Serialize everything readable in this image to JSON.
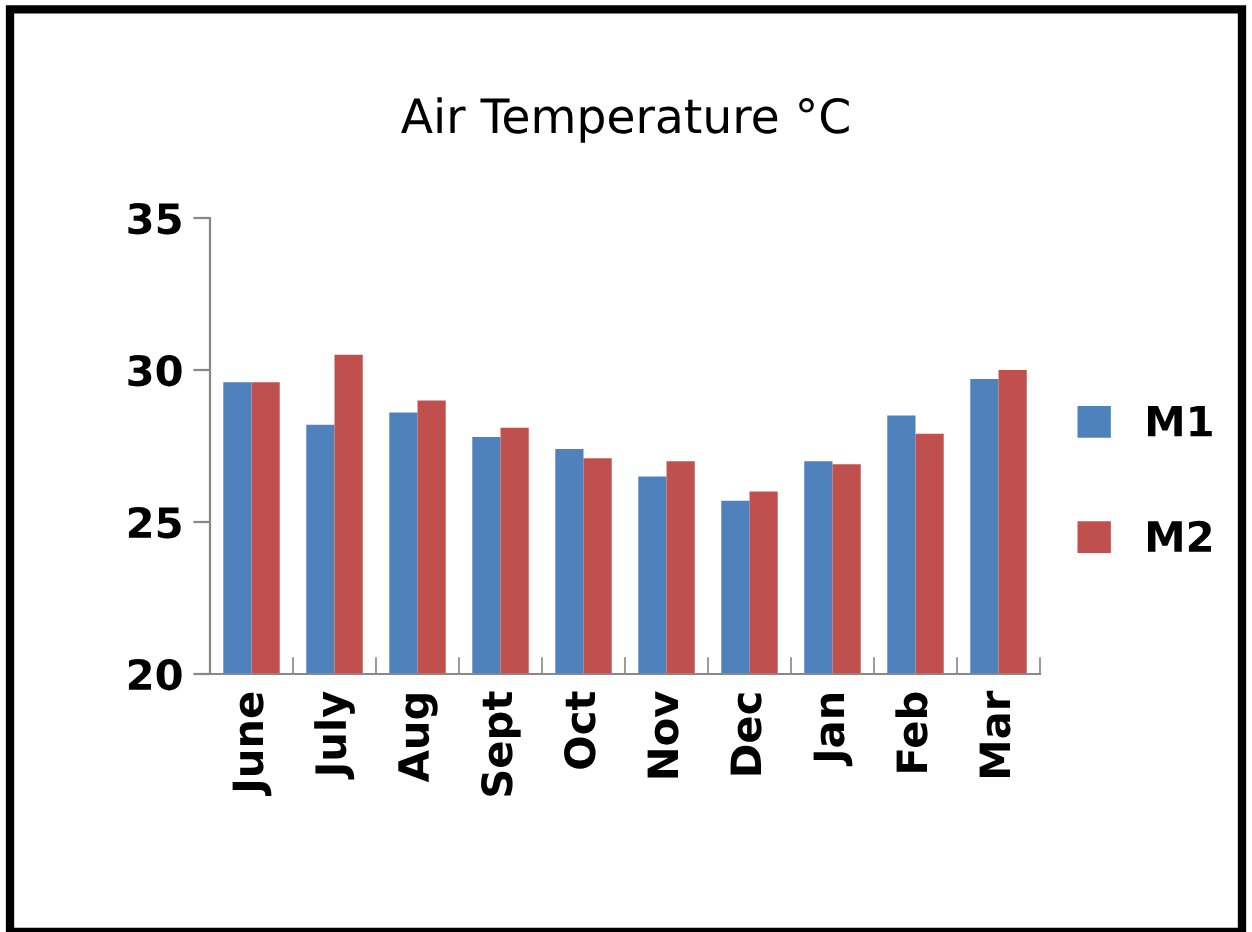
{
  "chart_data": {
    "type": "bar",
    "title": "Air Temperature °C",
    "categories": [
      "June",
      "July",
      "Aug",
      "Sept",
      "Oct",
      "Nov",
      "Dec",
      "Jan",
      "Feb",
      "Mar"
    ],
    "series": [
      {
        "name": "M1",
        "color": "#4f81bd",
        "values": [
          29.6,
          28.2,
          28.6,
          27.8,
          27.4,
          26.5,
          25.7,
          27.0,
          28.5,
          29.7
        ]
      },
      {
        "name": "M2",
        "color": "#c0504d",
        "values": [
          29.6,
          30.5,
          29.0,
          28.1,
          27.1,
          27.0,
          26.0,
          26.9,
          27.9,
          30.0
        ]
      }
    ],
    "ylim": [
      20,
      35
    ],
    "yticks": [
      20,
      25,
      30,
      35
    ],
    "grid": false,
    "legend": "right"
  }
}
